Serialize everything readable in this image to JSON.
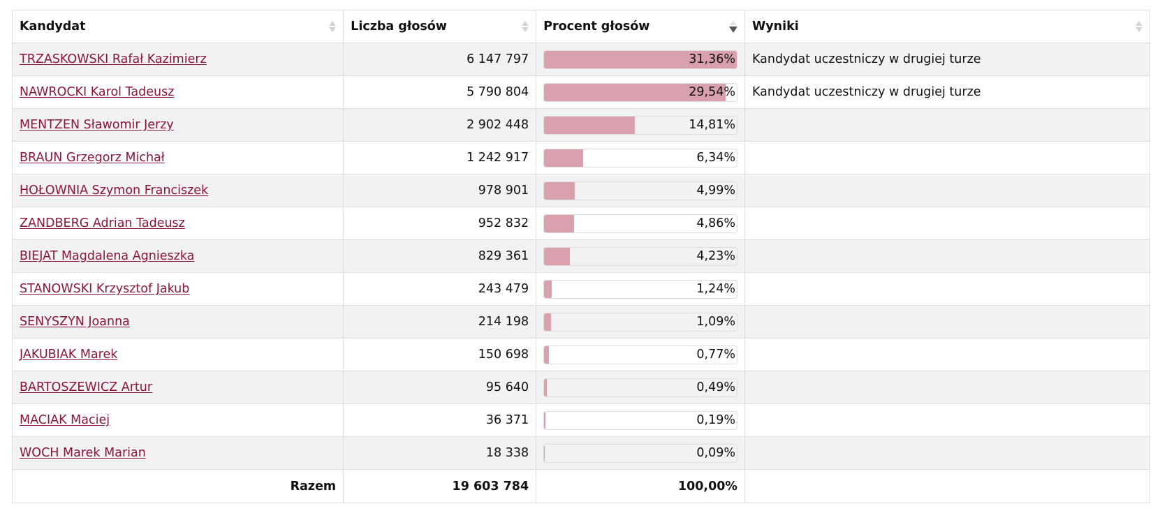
{
  "table": {
    "headers": {
      "candidate": "Kandydat",
      "votes": "Liczba głosów",
      "percent": "Procent głosów",
      "results": "Wyniki"
    },
    "sort": {
      "column": "percent",
      "direction": "descending"
    },
    "rows": [
      {
        "name": "TRZASKOWSKI Rafał Kazimierz",
        "votes": "6 147 797",
        "percent_label": "31,36%",
        "percent": 31.36,
        "result": "Kandydat uczestniczy w drugiej turze"
      },
      {
        "name": "NAWROCKI Karol Tadeusz",
        "votes": "5 790 804",
        "percent_label": "29,54%",
        "percent": 29.54,
        "result": "Kandydat uczestniczy w drugiej turze"
      },
      {
        "name": "MENTZEN Sławomir Jerzy",
        "votes": "2 902 448",
        "percent_label": "14,81%",
        "percent": 14.81,
        "result": ""
      },
      {
        "name": "BRAUN Grzegorz Michał",
        "votes": "1 242 917",
        "percent_label": "6,34%",
        "percent": 6.34,
        "result": ""
      },
      {
        "name": "HOŁOWNIA Szymon Franciszek",
        "votes": "978 901",
        "percent_label": "4,99%",
        "percent": 4.99,
        "result": ""
      },
      {
        "name": "ZANDBERG Adrian Tadeusz",
        "votes": "952 832",
        "percent_label": "4,86%",
        "percent": 4.86,
        "result": ""
      },
      {
        "name": "BIEJAT Magdalena Agnieszka",
        "votes": "829 361",
        "percent_label": "4,23%",
        "percent": 4.23,
        "result": ""
      },
      {
        "name": "STANOWSKI Krzysztof Jakub",
        "votes": "243 479",
        "percent_label": "1,24%",
        "percent": 1.24,
        "result": ""
      },
      {
        "name": "SENYSZYN Joanna",
        "votes": "214 198",
        "percent_label": "1,09%",
        "percent": 1.09,
        "result": ""
      },
      {
        "name": "JAKUBIAK Marek",
        "votes": "150 698",
        "percent_label": "0,77%",
        "percent": 0.77,
        "result": ""
      },
      {
        "name": "BARTOSZEWICZ Artur",
        "votes": "95 640",
        "percent_label": "0,49%",
        "percent": 0.49,
        "result": ""
      },
      {
        "name": "MACIAK Maciej",
        "votes": "36 371",
        "percent_label": "0,19%",
        "percent": 0.19,
        "result": ""
      },
      {
        "name": "WOCH Marek Marian",
        "votes": "18 338",
        "percent_label": "0,09%",
        "percent": 0.09,
        "result": ""
      }
    ],
    "footer": {
      "label": "Razem",
      "votes": "19 603 784",
      "percent": "100,00%"
    }
  },
  "colors": {
    "link": "#8a1538",
    "bar_fill": "#d9a0ad",
    "row_stripe": "#f2f2f2",
    "border": "#dddddd"
  }
}
